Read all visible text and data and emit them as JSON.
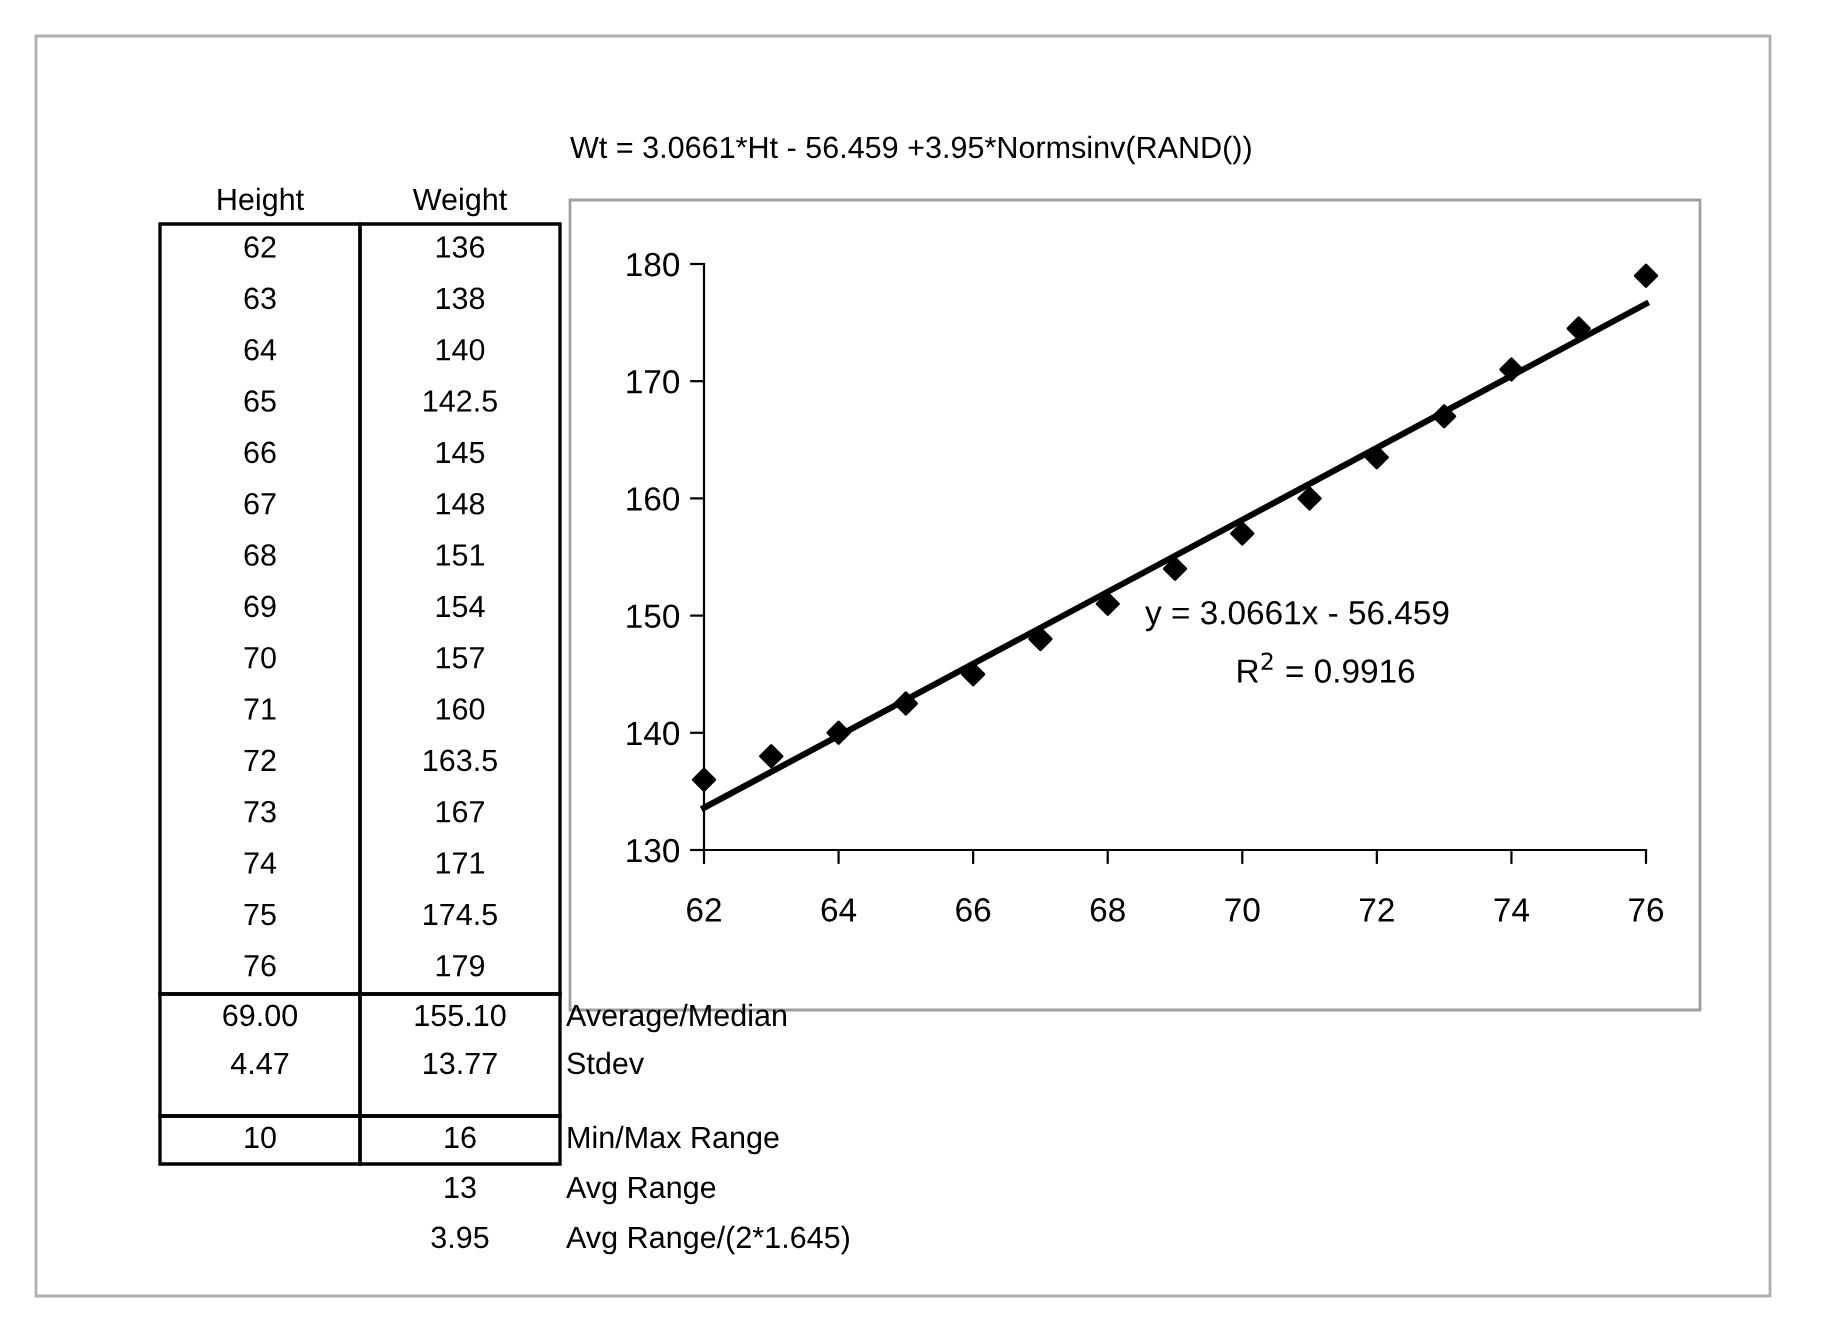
{
  "chart_data": {
    "type": "scatter",
    "x": [
      62,
      63,
      64,
      65,
      66,
      67,
      68,
      69,
      70,
      71,
      72,
      73,
      74,
      75,
      76
    ],
    "series": [
      {
        "color": "#000000",
        "marker": "diamond",
        "values": [
          136,
          138,
          140,
          142.5,
          145,
          148,
          151,
          154,
          157,
          160,
          163.5,
          167,
          171,
          174.5,
          179
        ]
      },
      {
        "type": "line",
        "color": "#000000",
        "marker": "none",
        "line_style": "solid",
        "x": [
          62,
          76
        ],
        "values": [
          133.6,
          176.6
        ]
      }
    ],
    "xlim": [
      62,
      76
    ],
    "xticks": [
      62,
      64,
      66,
      68,
      70,
      72,
      74,
      76
    ],
    "ylim": [
      130,
      180
    ],
    "yticks": [
      130,
      140,
      150,
      160,
      170,
      180
    ],
    "annotations": [
      "Wt = 3.0661*Ht - 56.459 +3.95*Normsinv(RAND())",
      "y = 3.0661x - 56.459",
      "R$^{2}$ = 0.9916",
      "Height",
      "Weight",
      "62",
      "136",
      "63",
      "138",
      "64",
      "140",
      "65",
      "142.5",
      "66",
      "145",
      "67",
      "148",
      "68",
      "151",
      "69",
      "154",
      "70",
      "157",
      "71",
      "160",
      "72",
      "163.5",
      "73",
      "167",
      "74",
      "171",
      "75",
      "174.5",
      "76",
      "179",
      "69.00",
      "155.10",
      "Average/Median",
      "4.47",
      "13.77",
      "Stdev",
      "10",
      "16",
      "Min/Max Range",
      "13",
      "Avg Range",
      "3.95",
      "Avg Range/(2*1.645)"
    ]
  }
}
